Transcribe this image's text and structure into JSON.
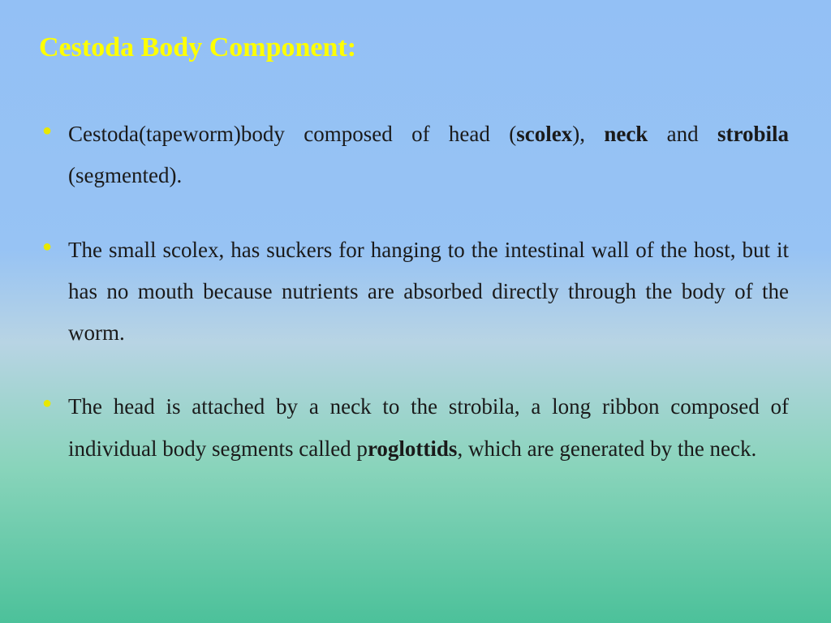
{
  "title": "Cestoda Body Component:",
  "bullets": [
    {
      "pre": "Cestoda(tapeworm)body composed of head (",
      "bold1": "scolex",
      "mid1": "), ",
      "bold2": "neck",
      "mid2": " and ",
      "bold3": "strobila",
      "post": " (segmented)."
    },
    {
      "text": "The small scolex, has suckers for hanging to the intestinal wall of the host, but it has no mouth because nutrients are absorbed directly through the body of the worm."
    },
    {
      "pre": "The head is attached by a neck to the strobila,  a long ribbon composed of individual body segments called p",
      "bold1": "roglottids",
      "post": ", which are generated by the neck."
    }
  ],
  "colors": {
    "title_color": "#ffff00",
    "bullet_marker": "#e8e800",
    "text_color": "#1a1a1a",
    "bg_top": "#93c0f5",
    "bg_bottom": "#4cc19a"
  },
  "typography": {
    "title_fontsize": 34,
    "body_fontsize": 27,
    "font_family": "Georgia, serif",
    "line_height": 1.9
  }
}
